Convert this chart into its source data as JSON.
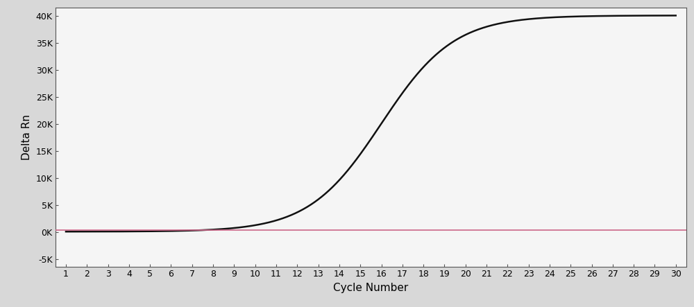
{
  "xlabel": "Cycle Number",
  "ylabel": "Delta Rn",
  "x_ticks": [
    1,
    2,
    3,
    4,
    5,
    6,
    7,
    8,
    9,
    10,
    11,
    12,
    13,
    14,
    15,
    16,
    17,
    18,
    19,
    20,
    21,
    22,
    23,
    24,
    25,
    26,
    27,
    28,
    29,
    30
  ],
  "y_ticks": [
    -5000,
    0,
    5000,
    10000,
    15000,
    20000,
    25000,
    30000,
    35000,
    40000
  ],
  "y_tick_labels": [
    "-5K",
    "0K",
    "5K",
    "10K",
    "15K",
    "20K",
    "25K",
    "30K",
    "35K",
    "40K"
  ],
  "ylim": [
    -6500,
    41500
  ],
  "xlim": [
    0.5,
    30.5
  ],
  "sigmoid_L": 40000,
  "sigmoid_k": 0.58,
  "sigmoid_x0": 16.0,
  "baseline_y": 50,
  "threshold_y": 300,
  "line_color": "#111111",
  "threshold_color": "#cc6688",
  "bg_color": "#d8d8d8",
  "plot_bg_color": "#f5f5f5",
  "xlabel_fontsize": 11,
  "ylabel_fontsize": 11,
  "tick_fontsize": 9,
  "linewidth": 1.8
}
